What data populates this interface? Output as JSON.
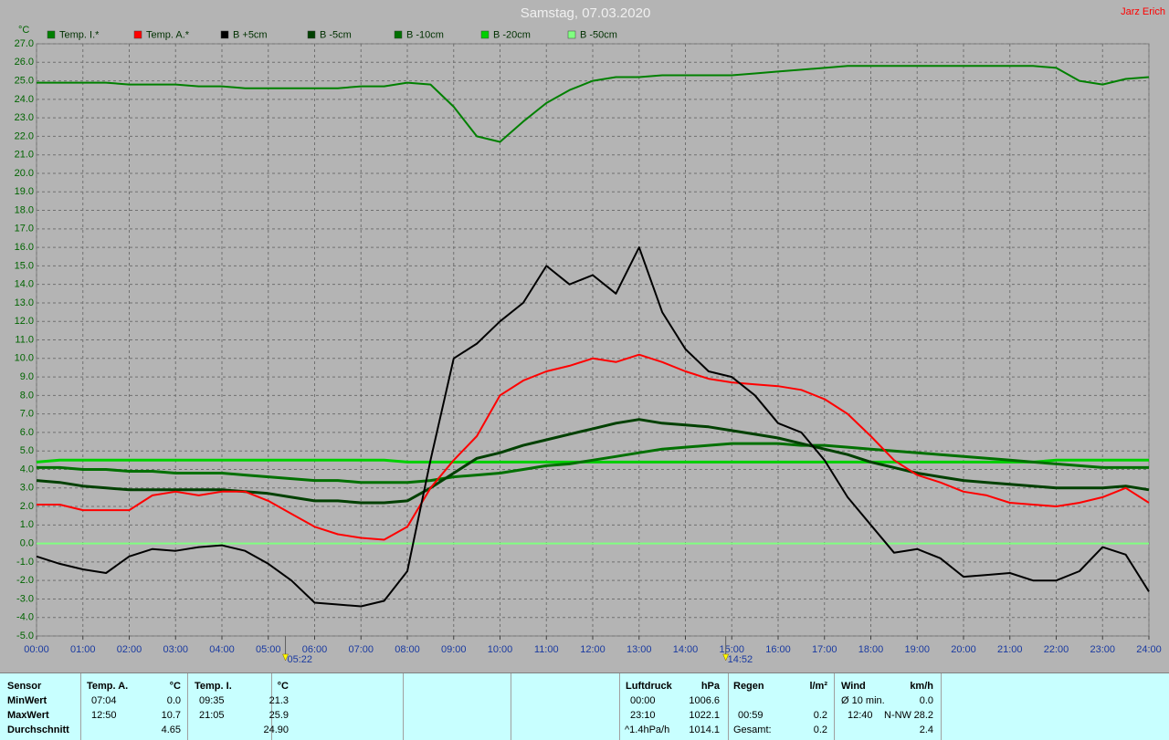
{
  "chart_data": {
    "type": "line",
    "title": "Samstag, 07.03.2020",
    "author": "Jarz Erich",
    "ylabel": "°C",
    "grid": true,
    "xlim": [
      0,
      24
    ],
    "ylim": [
      -5,
      27
    ],
    "xticks": [
      {
        "value": 0,
        "label": "00:00"
      },
      {
        "value": 1,
        "label": "01:00"
      },
      {
        "value": 2,
        "label": "02:00"
      },
      {
        "value": 3,
        "label": "03:00"
      },
      {
        "value": 4,
        "label": "04:00"
      },
      {
        "value": 5,
        "label": "05:00"
      },
      {
        "value": 6,
        "label": "06:00"
      },
      {
        "value": 7,
        "label": "07:00"
      },
      {
        "value": 8,
        "label": "08:00"
      },
      {
        "value": 9,
        "label": "09:00"
      },
      {
        "value": 10,
        "label": "10:00"
      },
      {
        "value": 11,
        "label": "11:00"
      },
      {
        "value": 12,
        "label": "12:00"
      },
      {
        "value": 13,
        "label": "13:00"
      },
      {
        "value": 14,
        "label": "14:00"
      },
      {
        "value": 15,
        "label": "15:00"
      },
      {
        "value": 16,
        "label": "16:00"
      },
      {
        "value": 17,
        "label": "17:00"
      },
      {
        "value": 18,
        "label": "18:00"
      },
      {
        "value": 19,
        "label": "19:00"
      },
      {
        "value": 20,
        "label": "20:00"
      },
      {
        "value": 21,
        "label": "21:00"
      },
      {
        "value": 22,
        "label": "22:00"
      },
      {
        "value": 23,
        "label": "23:00"
      },
      {
        "value": 24,
        "label": "24:00"
      }
    ],
    "yticks": [
      {
        "value": -5,
        "label": "-5.0"
      },
      {
        "value": -4,
        "label": "-4.0"
      },
      {
        "value": -3,
        "label": "-3.0"
      },
      {
        "value": -2,
        "label": "-2.0"
      },
      {
        "value": -1,
        "label": "-1.0"
      },
      {
        "value": 0,
        "label": "0.0"
      },
      {
        "value": 1,
        "label": "1.0"
      },
      {
        "value": 2,
        "label": "2.0"
      },
      {
        "value": 3,
        "label": "3.0"
      },
      {
        "value": 4,
        "label": "4.0"
      },
      {
        "value": 5,
        "label": "5.0"
      },
      {
        "value": 6,
        "label": "6.0"
      },
      {
        "value": 7,
        "label": "7.0"
      },
      {
        "value": 8,
        "label": "8.0"
      },
      {
        "value": 9,
        "label": "9.0"
      },
      {
        "value": 10,
        "label": "10.0"
      },
      {
        "value": 11,
        "label": "11.0"
      },
      {
        "value": 12,
        "label": "12.0"
      },
      {
        "value": 13,
        "label": "13.0"
      },
      {
        "value": 14,
        "label": "14.0"
      },
      {
        "value": 15,
        "label": "15.0"
      },
      {
        "value": 16,
        "label": "16.0"
      },
      {
        "value": 17,
        "label": "17.0"
      },
      {
        "value": 18,
        "label": "18.0"
      },
      {
        "value": 19,
        "label": "19.0"
      },
      {
        "value": 20,
        "label": "20.0"
      },
      {
        "value": 21,
        "label": "21.0"
      },
      {
        "value": 22,
        "label": "22.0"
      },
      {
        "value": 23,
        "label": "23.0"
      },
      {
        "value": 24,
        "label": "24.0"
      },
      {
        "value": 25,
        "label": "25.0"
      },
      {
        "value": 26,
        "label": "26.0"
      },
      {
        "value": 27,
        "label": "27.0"
      }
    ],
    "annotations": [
      {
        "x": 5.37,
        "label": "05:22"
      },
      {
        "x": 14.87,
        "label": "14:52"
      }
    ],
    "x": [
      0,
      0.5,
      1,
      1.5,
      2,
      2.5,
      3,
      3.5,
      4,
      4.5,
      5,
      5.5,
      6,
      6.5,
      7,
      7.5,
      8,
      8.5,
      9,
      9.5,
      10,
      10.5,
      11,
      11.5,
      12,
      12.5,
      13,
      13.5,
      14,
      14.5,
      15,
      15.5,
      16,
      16.5,
      17,
      17.5,
      18,
      18.5,
      19,
      19.5,
      20,
      20.5,
      21,
      21.5,
      22,
      22.5,
      23,
      23.5,
      24
    ],
    "series": [
      {
        "name": "Temp. I.*",
        "color": "#008000",
        "width": 2,
        "values": [
          24.9,
          24.9,
          24.9,
          24.9,
          24.8,
          24.8,
          24.8,
          24.7,
          24.7,
          24.6,
          24.6,
          24.6,
          24.6,
          24.6,
          24.7,
          24.7,
          24.9,
          24.8,
          23.6,
          22.0,
          21.7,
          22.8,
          23.8,
          24.5,
          25.0,
          25.2,
          25.2,
          25.3,
          25.3,
          25.3,
          25.3,
          25.4,
          25.5,
          25.6,
          25.7,
          25.8,
          25.8,
          25.8,
          25.8,
          25.8,
          25.8,
          25.8,
          25.8,
          25.8,
          25.7,
          25.0,
          24.8,
          25.1,
          25.2
        ]
      },
      {
        "name": "Temp. A.*",
        "color": "#ff0000",
        "width": 2,
        "values": [
          2.1,
          2.1,
          1.8,
          1.8,
          1.8,
          2.6,
          2.8,
          2.6,
          2.8,
          2.8,
          2.3,
          1.6,
          0.9,
          0.5,
          0.3,
          0.2,
          0.9,
          3.0,
          4.5,
          5.8,
          8.0,
          8.8,
          9.3,
          9.6,
          10.0,
          9.8,
          10.2,
          9.8,
          9.3,
          8.9,
          8.7,
          8.6,
          8.5,
          8.3,
          7.8,
          7.0,
          5.8,
          4.5,
          3.7,
          3.3,
          2.8,
          2.6,
          2.2,
          2.1,
          2.0,
          2.2,
          2.5,
          3.0,
          2.2
        ]
      },
      {
        "name": "B +5cm",
        "color": "#000000",
        "width": 2,
        "values": [
          -0.7,
          -1.1,
          -1.4,
          -1.6,
          -0.7,
          -0.3,
          -0.4,
          -0.2,
          -0.1,
          -0.4,
          -1.1,
          -2.0,
          -3.2,
          -3.3,
          -3.4,
          -3.1,
          -1.5,
          4.5,
          10.0,
          10.8,
          12.0,
          13.0,
          15.0,
          14.0,
          14.5,
          13.5,
          16.0,
          12.5,
          10.5,
          9.3,
          9.0,
          8.0,
          6.5,
          6.0,
          4.5,
          2.5,
          1.0,
          -0.5,
          -0.3,
          -0.8,
          -1.8,
          -1.7,
          -1.6,
          -2.0,
          -2.0,
          -1.5,
          -0.2,
          -0.6,
          -2.6
        ]
      },
      {
        "name": "B -5cm",
        "color": "#004000",
        "width": 3,
        "values": [
          3.4,
          3.3,
          3.1,
          3.0,
          2.9,
          2.9,
          2.9,
          2.9,
          2.9,
          2.8,
          2.7,
          2.5,
          2.3,
          2.3,
          2.2,
          2.2,
          2.3,
          3.0,
          3.8,
          4.6,
          4.9,
          5.3,
          5.6,
          5.9,
          6.2,
          6.5,
          6.7,
          6.5,
          6.4,
          6.3,
          6.1,
          5.9,
          5.7,
          5.4,
          5.1,
          4.8,
          4.4,
          4.1,
          3.8,
          3.6,
          3.4,
          3.3,
          3.2,
          3.1,
          3.0,
          3.0,
          3.0,
          3.1,
          2.9
        ]
      },
      {
        "name": "B -10cm",
        "color": "#007000",
        "width": 3,
        "values": [
          4.1,
          4.1,
          4.0,
          4.0,
          3.9,
          3.9,
          3.8,
          3.8,
          3.8,
          3.7,
          3.6,
          3.5,
          3.4,
          3.4,
          3.3,
          3.3,
          3.3,
          3.4,
          3.6,
          3.7,
          3.8,
          4.0,
          4.2,
          4.3,
          4.5,
          4.7,
          4.9,
          5.1,
          5.2,
          5.3,
          5.4,
          5.4,
          5.4,
          5.3,
          5.3,
          5.2,
          5.1,
          5.0,
          4.9,
          4.8,
          4.7,
          4.6,
          4.5,
          4.4,
          4.3,
          4.2,
          4.1,
          4.1,
          4.1
        ]
      },
      {
        "name": "B -20cm",
        "color": "#00d000",
        "width": 3,
        "values": [
          4.4,
          4.5,
          4.5,
          4.5,
          4.5,
          4.5,
          4.5,
          4.5,
          4.5,
          4.5,
          4.5,
          4.5,
          4.5,
          4.5,
          4.5,
          4.5,
          4.4,
          4.4,
          4.4,
          4.4,
          4.4,
          4.4,
          4.4,
          4.4,
          4.4,
          4.4,
          4.4,
          4.4,
          4.4,
          4.4,
          4.4,
          4.4,
          4.4,
          4.4,
          4.4,
          4.4,
          4.4,
          4.4,
          4.4,
          4.4,
          4.4,
          4.4,
          4.4,
          4.4,
          4.5,
          4.5,
          4.5,
          4.5,
          4.5
        ]
      },
      {
        "name": "B -50cm",
        "color": "#80ff80",
        "width": 2,
        "values": [
          0,
          0,
          0,
          0,
          0,
          0,
          0,
          0,
          0,
          0,
          0,
          0,
          0,
          0,
          0,
          0,
          0,
          0,
          0,
          0,
          0,
          0,
          0,
          0,
          0,
          0,
          0,
          0,
          0,
          0,
          0,
          0,
          0,
          0,
          0,
          0,
          0,
          0,
          0,
          0,
          0,
          0,
          0,
          0,
          0,
          0,
          0,
          0,
          0
        ]
      }
    ]
  },
  "stats": {
    "sensor": [
      "Sensor",
      "MinWert",
      "MaxWert",
      "Durchschnitt"
    ],
    "temp_a": {
      "header": [
        "Temp. A.",
        "°C"
      ],
      "min": [
        "07:04",
        "0.0"
      ],
      "max": [
        "12:50",
        "10.7"
      ],
      "avg": "4.65"
    },
    "temp_i": {
      "header": [
        "Temp. I.",
        "°C"
      ],
      "min": [
        "09:35",
        "21.3"
      ],
      "max": [
        "21:05",
        "25.9"
      ],
      "avg": "24.90"
    },
    "pressure": {
      "header": [
        "Luftdruck",
        "hPa"
      ],
      "min": [
        "00:00",
        "1006.6"
      ],
      "max": [
        "23:10",
        "1022.1"
      ],
      "avg": [
        "^1.4hPa/h",
        "1014.1"
      ]
    },
    "rain": {
      "header": [
        "Regen",
        "l/m²"
      ],
      "max": [
        "00:59",
        "0.2"
      ],
      "total": [
        "Gesamt:",
        "0.2"
      ]
    },
    "wind": {
      "header": [
        "Wind",
        "km/h"
      ],
      "min": [
        "Ø 10 min.",
        "0.0"
      ],
      "max": [
        "12:40",
        "N-NW",
        "28.2"
      ],
      "avg": "2.4"
    }
  }
}
